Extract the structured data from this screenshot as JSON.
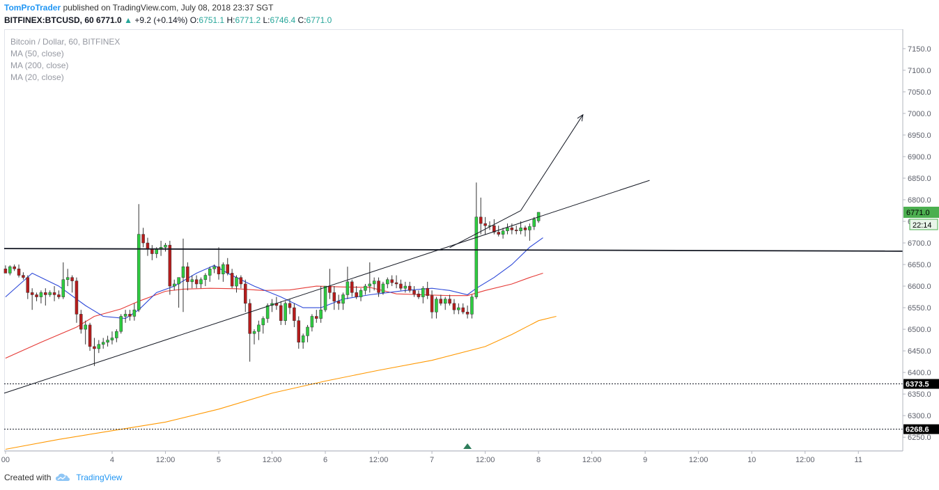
{
  "header": {
    "author": "TomProTrader",
    "published_text": "published on TradingView.com, July 08, 2018 23:37 SGT",
    "symbol_line": "BITFINEX:BTCUSD, 60",
    "last": "6771.0",
    "change": "+9.2 (+0.14%)",
    "open_label": "O:",
    "open": "6751.1",
    "high_label": "H:",
    "high": "6771.2",
    "low_label": "L:",
    "low": "6746.4",
    "close_label": "C:",
    "close": "6771.0"
  },
  "legend": {
    "title": "Bitcoin / Dollar, 60, BITFINEX",
    "ma50": "MA (50, close)",
    "ma200": "MA (200, close)",
    "ma20": "MA (20, close)"
  },
  "footer": {
    "created_with": "Created with",
    "brand": "TradingView"
  },
  "chart_data": {
    "type": "candlestick",
    "symbol": "BITFINEX:BTCUSD",
    "interval": "60",
    "x_labels": [
      {
        "x": 0,
        "label": "00"
      },
      {
        "x": 24,
        "label": "4"
      },
      {
        "x": 36,
        "label": "12:00"
      },
      {
        "x": 48,
        "label": "5"
      },
      {
        "x": 60,
        "label": "12:00"
      },
      {
        "x": 72,
        "label": "6"
      },
      {
        "x": 84,
        "label": "12:00"
      },
      {
        "x": 96,
        "label": "7"
      },
      {
        "x": 108,
        "label": "12:00"
      },
      {
        "x": 120,
        "label": "8"
      },
      {
        "x": 132,
        "label": "12:00"
      },
      {
        "x": 144,
        "label": "9"
      },
      {
        "x": 156,
        "label": "12:00"
      },
      {
        "x": 168,
        "label": "10"
      },
      {
        "x": 180,
        "label": "12:00"
      },
      {
        "x": 192,
        "label": "11"
      }
    ],
    "y_ticks": [
      6250,
      6300,
      6350,
      6400,
      6450,
      6500,
      6550,
      6600,
      6650,
      6700,
      6750,
      6800,
      6850,
      6900,
      6950,
      7000,
      7050,
      7100,
      7150
    ],
    "ylim": [
      6218,
      7195
    ],
    "xlim": [
      -0.3,
      202
    ],
    "candles": [
      [
        0,
        6640,
        6648,
        6630,
        6630
      ],
      [
        1,
        6630,
        6648,
        6625,
        6645
      ],
      [
        2,
        6645,
        6650,
        6635,
        6640
      ],
      [
        3,
        6640,
        6650,
        6620,
        6625
      ],
      [
        4,
        6625,
        6632,
        6615,
        6620
      ],
      [
        5,
        6620,
        6625,
        6570,
        6585
      ],
      [
        6,
        6585,
        6595,
        6545,
        6580
      ],
      [
        7,
        6580,
        6585,
        6565,
        6575
      ],
      [
        8,
        6575,
        6590,
        6560,
        6585
      ],
      [
        9,
        6585,
        6595,
        6555,
        6580
      ],
      [
        10,
        6580,
        6590,
        6575,
        6585
      ],
      [
        11,
        6585,
        6600,
        6565,
        6580
      ],
      [
        12,
        6580,
        6590,
        6570,
        6575
      ],
      [
        13,
        6575,
        6655,
        6570,
        6615
      ],
      [
        14,
        6615,
        6640,
        6600,
        6620
      ],
      [
        15,
        6620,
        6625,
        6585,
        6612
      ],
      [
        16,
        6612,
        6620,
        6515,
        6535
      ],
      [
        17,
        6535,
        6545,
        6490,
        6500
      ],
      [
        18,
        6500,
        6520,
        6465,
        6510
      ],
      [
        19,
        6510,
        6515,
        6450,
        6460
      ],
      [
        20,
        6460,
        6480,
        6415,
        6455
      ],
      [
        21,
        6455,
        6475,
        6445,
        6465
      ],
      [
        22,
        6465,
        6480,
        6455,
        6470
      ],
      [
        23,
        6470,
        6485,
        6460,
        6475
      ],
      [
        24,
        6475,
        6495,
        6465,
        6480
      ],
      [
        25,
        6480,
        6500,
        6470,
        6495
      ],
      [
        26,
        6495,
        6535,
        6490,
        6530
      ],
      [
        27,
        6530,
        6545,
        6515,
        6535
      ],
      [
        28,
        6535,
        6545,
        6520,
        6530
      ],
      [
        29,
        6530,
        6560,
        6520,
        6545
      ],
      [
        30,
        6545,
        6790,
        6540,
        6720
      ],
      [
        31,
        6720,
        6735,
        6690,
        6700
      ],
      [
        32,
        6700,
        6712,
        6670,
        6685
      ],
      [
        33,
        6685,
        6695,
        6660,
        6675
      ],
      [
        34,
        6675,
        6690,
        6665,
        6685
      ],
      [
        35,
        6685,
        6705,
        6670,
        6690
      ],
      [
        36,
        6690,
        6700,
        6680,
        6695
      ],
      [
        37,
        6695,
        6705,
        6580,
        6600
      ],
      [
        38,
        6600,
        6615,
        6590,
        6605
      ],
      [
        39,
        6605,
        6615,
        6550,
        6620
      ],
      [
        40,
        6620,
        6710,
        6540,
        6645
      ],
      [
        41,
        6645,
        6655,
        6590,
        6610
      ],
      [
        42,
        6610,
        6625,
        6595,
        6615
      ],
      [
        43,
        6615,
        6625,
        6595,
        6605
      ],
      [
        44,
        6605,
        6620,
        6595,
        6615
      ],
      [
        45,
        6615,
        6630,
        6600,
        6625
      ],
      [
        46,
        6625,
        6645,
        6610,
        6640
      ],
      [
        47,
        6640,
        6650,
        6630,
        6645
      ],
      [
        48,
        6645,
        6690,
        6615,
        6628
      ],
      [
        49,
        6628,
        6655,
        6610,
        6650
      ],
      [
        50,
        6650,
        6665,
        6625,
        6630
      ],
      [
        51,
        6630,
        6640,
        6595,
        6600
      ],
      [
        52,
        6600,
        6625,
        6585,
        6620
      ],
      [
        53,
        6620,
        6625,
        6595,
        6605
      ],
      [
        54,
        6605,
        6615,
        6540,
        6560
      ],
      [
        55,
        6560,
        6570,
        6425,
        6490
      ],
      [
        56,
        6490,
        6500,
        6465,
        6495
      ],
      [
        57,
        6495,
        6520,
        6475,
        6510
      ],
      [
        58,
        6510,
        6530,
        6490,
        6525
      ],
      [
        59,
        6525,
        6560,
        6515,
        6555
      ],
      [
        60,
        6555,
        6570,
        6540,
        6560
      ],
      [
        61,
        6560,
        6575,
        6545,
        6555
      ],
      [
        62,
        6555,
        6565,
        6510,
        6520
      ],
      [
        63,
        6520,
        6565,
        6510,
        6560
      ],
      [
        64,
        6560,
        6570,
        6535,
        6550
      ],
      [
        65,
        6550,
        6560,
        6505,
        6520
      ],
      [
        66,
        6520,
        6530,
        6455,
        6470
      ],
      [
        67,
        6470,
        6490,
        6455,
        6485
      ],
      [
        68,
        6485,
        6510,
        6470,
        6505
      ],
      [
        69,
        6505,
        6535,
        6495,
        6530
      ],
      [
        70,
        6530,
        6545,
        6515,
        6525
      ],
      [
        71,
        6525,
        6600,
        6515,
        6545
      ],
      [
        72,
        6545,
        6600,
        6540,
        6600
      ],
      [
        73,
        6600,
        6640,
        6570,
        6585
      ],
      [
        74,
        6585,
        6600,
        6545,
        6565
      ],
      [
        75,
        6565,
        6580,
        6545,
        6560
      ],
      [
        76,
        6560,
        6585,
        6545,
        6580
      ],
      [
        77,
        6580,
        6645,
        6570,
        6610
      ],
      [
        78,
        6610,
        6615,
        6575,
        6585
      ],
      [
        79,
        6585,
        6600,
        6570,
        6575
      ],
      [
        80,
        6575,
        6595,
        6565,
        6590
      ],
      [
        81,
        6590,
        6605,
        6580,
        6600
      ],
      [
        82,
        6600,
        6655,
        6585,
        6605
      ],
      [
        83,
        6605,
        6620,
        6590,
        6612
      ],
      [
        84,
        6612,
        6620,
        6575,
        6585
      ],
      [
        85,
        6585,
        6610,
        6580,
        6605
      ],
      [
        86,
        6605,
        6620,
        6595,
        6615
      ],
      [
        87,
        6615,
        6625,
        6600,
        6608
      ],
      [
        88,
        6608,
        6625,
        6595,
        6605
      ],
      [
        89,
        6605,
        6615,
        6590,
        6595
      ],
      [
        90,
        6595,
        6610,
        6585,
        6600
      ],
      [
        91,
        6600,
        6610,
        6585,
        6590
      ],
      [
        92,
        6590,
        6600,
        6575,
        6582
      ],
      [
        93,
        6582,
        6590,
        6570,
        6575
      ],
      [
        94,
        6575,
        6600,
        6560,
        6595
      ],
      [
        95,
        6595,
        6610,
        6570,
        6578
      ],
      [
        96,
        6578,
        6590,
        6525,
        6540
      ],
      [
        97,
        6540,
        6575,
        6525,
        6570
      ],
      [
        98,
        6570,
        6580,
        6555,
        6560
      ],
      [
        99,
        6560,
        6575,
        6545,
        6570
      ],
      [
        100,
        6570,
        6580,
        6555,
        6560
      ],
      [
        101,
        6560,
        6570,
        6535,
        6545
      ],
      [
        102,
        6545,
        6560,
        6535,
        6550
      ],
      [
        103,
        6550,
        6560,
        6535,
        6540
      ],
      [
        104,
        6540,
        6555,
        6525,
        6535
      ],
      [
        105,
        6535,
        6580,
        6525,
        6575
      ],
      [
        106,
        6575,
        6840,
        6570,
        6760
      ],
      [
        107,
        6760,
        6805,
        6720,
        6745
      ],
      [
        108,
        6745,
        6760,
        6720,
        6740
      ],
      [
        109,
        6740,
        6750,
        6730,
        6740
      ],
      [
        110,
        6740,
        6755,
        6720,
        6725
      ],
      [
        111,
        6725,
        6740,
        6715,
        6720
      ],
      [
        112,
        6720,
        6735,
        6710,
        6728
      ],
      [
        113,
        6728,
        6745,
        6720,
        6735
      ],
      [
        114,
        6735,
        6745,
        6720,
        6730
      ],
      [
        115,
        6730,
        6740,
        6720,
        6728
      ],
      [
        116,
        6728,
        6750,
        6720,
        6735
      ],
      [
        117,
        6735,
        6740,
        6715,
        6730
      ],
      [
        118,
        6730,
        6745,
        6705,
        6738
      ],
      [
        119,
        6738,
        6760,
        6730,
        6755
      ],
      [
        120,
        6751.1,
        6771.2,
        6746.4,
        6771.0
      ]
    ],
    "ma20": [
      [
        0,
        6575
      ],
      [
        6,
        6630
      ],
      [
        12,
        6600
      ],
      [
        18,
        6555
      ],
      [
        22,
        6530
      ],
      [
        27,
        6525
      ],
      [
        30,
        6545
      ],
      [
        34,
        6585
      ],
      [
        38,
        6600
      ],
      [
        43,
        6630
      ],
      [
        47,
        6648
      ],
      [
        50,
        6630
      ],
      [
        56,
        6600
      ],
      [
        62,
        6575
      ],
      [
        67,
        6550
      ],
      [
        71,
        6550
      ],
      [
        76,
        6570
      ],
      [
        82,
        6580
      ],
      [
        86,
        6585
      ],
      [
        90,
        6590
      ],
      [
        96,
        6595
      ],
      [
        100,
        6590
      ],
      [
        104,
        6580
      ],
      [
        106,
        6595
      ],
      [
        110,
        6620
      ],
      [
        114,
        6650
      ],
      [
        118,
        6690
      ],
      [
        121,
        6712
      ]
    ],
    "ma50": [
      [
        0,
        6433
      ],
      [
        8,
        6470
      ],
      [
        16,
        6505
      ],
      [
        20,
        6530
      ],
      [
        26,
        6547
      ],
      [
        30,
        6565
      ],
      [
        36,
        6588
      ],
      [
        40,
        6593
      ],
      [
        46,
        6595
      ],
      [
        52,
        6594
      ],
      [
        58,
        6590
      ],
      [
        64,
        6591
      ],
      [
        70,
        6600
      ],
      [
        76,
        6598
      ],
      [
        82,
        6597
      ],
      [
        88,
        6582
      ],
      [
        94,
        6580
      ],
      [
        100,
        6578
      ],
      [
        104,
        6578
      ],
      [
        108,
        6590
      ],
      [
        114,
        6605
      ],
      [
        118,
        6620
      ],
      [
        121,
        6630
      ]
    ],
    "ma200": [
      [
        0,
        6222
      ],
      [
        12,
        6245
      ],
      [
        24,
        6265
      ],
      [
        36,
        6285
      ],
      [
        48,
        6315
      ],
      [
        60,
        6352
      ],
      [
        72,
        6380
      ],
      [
        84,
        6405
      ],
      [
        96,
        6428
      ],
      [
        108,
        6460
      ],
      [
        114,
        6488
      ],
      [
        120,
        6520
      ],
      [
        124,
        6530
      ]
    ],
    "horizontal_lines": [
      {
        "price": 6373.5,
        "style": "dotted",
        "label": "6373.5"
      },
      {
        "price": 6268.6,
        "style": "dotted",
        "label": "6268.6"
      }
    ],
    "resistance_line": {
      "from": [
        -0.3,
        6687
      ],
      "to": [
        202,
        6681
      ]
    },
    "trendline": {
      "from": [
        -0.3,
        6352
      ],
      "to": [
        145,
        6845
      ]
    },
    "channel_line": {
      "from": [
        100,
        6689
      ],
      "to": [
        116,
        6775
      ]
    },
    "arrow": {
      "from": [
        116,
        6775
      ],
      "to": [
        130,
        6997
      ]
    },
    "signal_marker": {
      "x": 104,
      "label": "up-triangle"
    },
    "last_price_label": "6771.0",
    "countdown_label": "22:14",
    "up_color": "#2ecc40",
    "down_color": "#b71c1c",
    "ma20_color": "#2b47d8",
    "ma50_color": "#e53935",
    "ma200_color": "#ff9800"
  }
}
